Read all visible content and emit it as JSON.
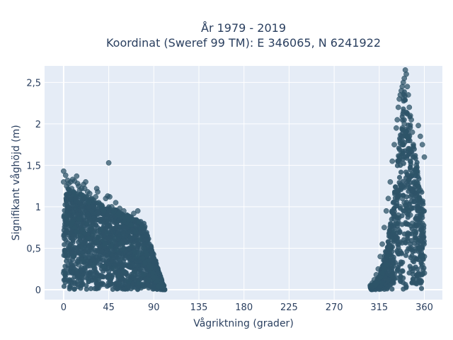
{
  "chart_data": {
    "type": "scatter",
    "title_line1": "År 1979 - 2019",
    "title_line2": "Koordinat (Sweref 99 TM): E 346065, N 6241922",
    "xlabel": "Vågriktning (grader)",
    "ylabel": "Signifikant våghöjd (m)",
    "xlim": [
      -19,
      378
    ],
    "ylim": [
      -0.12,
      2.7
    ],
    "x_ticks": [
      {
        "value": 0,
        "label": "0"
      },
      {
        "value": 45,
        "label": "45"
      },
      {
        "value": 90,
        "label": "90"
      },
      {
        "value": 135,
        "label": "135"
      },
      {
        "value": 180,
        "label": "180"
      },
      {
        "value": 225,
        "label": "225"
      },
      {
        "value": 270,
        "label": "270"
      },
      {
        "value": 315,
        "label": "315"
      },
      {
        "value": 360,
        "label": "360"
      }
    ],
    "y_ticks": [
      {
        "value": 0,
        "label": "0"
      },
      {
        "value": 0.5,
        "label": "0,5"
      },
      {
        "value": 1,
        "label": "1"
      },
      {
        "value": 1.5,
        "label": "1,5"
      },
      {
        "value": 2,
        "label": "2"
      },
      {
        "value": 2.5,
        "label": "2,5"
      }
    ],
    "grid": true,
    "marker_color": "#2e5468",
    "plot_background": "#e5ecf6",
    "series": [
      {
        "x": [
          0,
          0,
          0,
          2,
          3,
          4,
          5,
          6,
          7,
          8,
          9,
          10,
          11,
          12,
          13,
          14,
          15,
          16,
          17,
          18,
          20,
          21,
          22,
          23,
          24,
          25,
          26,
          28,
          30,
          32,
          33,
          34,
          35,
          36,
          38,
          40,
          42,
          44,
          45,
          46,
          48,
          50,
          52,
          54,
          55,
          56,
          58,
          60,
          61,
          62,
          63,
          64,
          65,
          66,
          67,
          68,
          70,
          72,
          74,
          75,
          76,
          78,
          80,
          82,
          83,
          84,
          85,
          86,
          88,
          90,
          92,
          94,
          95,
          96,
          98,
          100,
          1,
          3,
          5,
          7,
          9,
          11,
          13,
          15,
          17,
          19,
          21,
          23,
          25,
          27,
          29,
          31,
          33,
          35,
          37,
          39,
          41,
          43,
          47,
          49,
          51,
          53,
          57,
          59,
          69,
          71,
          73,
          77,
          79,
          81,
          87,
          89,
          91,
          93,
          97,
          99,
          10,
          20,
          30,
          40,
          50,
          60,
          70,
          80,
          90,
          25,
          35,
          45,
          55,
          65,
          75,
          85,
          15,
          95
        ],
        "y": [
          1.43,
          1.3,
          0.2,
          1.38,
          1.25,
          1.32,
          1.28,
          1.2,
          1.3,
          1.22,
          1.33,
          1.18,
          1.31,
          1.15,
          1.37,
          1.28,
          1.25,
          1.2,
          1.15,
          1.22,
          1.27,
          1.22,
          1.3,
          1.12,
          1.18,
          1.05,
          1.16,
          1.1,
          1.08,
          1.12,
          1.22,
          1.18,
          1.05,
          1.0,
          1.02,
          0.95,
          1.1,
          1.13,
          1.53,
          1.12,
          1.0,
          0.94,
          1.05,
          0.9,
          0.92,
          0.98,
          0.88,
          0.95,
          0.82,
          0.86,
          0.9,
          0.8,
          0.84,
          0.88,
          0.78,
          0.85,
          0.92,
          0.7,
          0.95,
          0.82,
          0.6,
          0.75,
          0.5,
          0.45,
          0.42,
          0.35,
          0.3,
          0.28,
          0.22,
          0.18,
          0.15,
          0.12,
          0.1,
          0.08,
          0.06,
          0.05,
          0.9,
          0.85,
          0.8,
          0.78,
          0.82,
          0.75,
          0.7,
          0.85,
          0.65,
          0.72,
          0.68,
          0.8,
          0.62,
          0.74,
          0.66,
          0.7,
          0.58,
          0.64,
          0.72,
          0.6,
          0.55,
          0.68,
          0.52,
          0.58,
          0.62,
          0.48,
          0.56,
          0.5,
          0.54,
          0.46,
          0.4,
          0.44,
          0.38,
          0.32,
          0.26,
          0.2,
          0.12,
          0.1,
          0.07,
          0.05,
          0.4,
          0.35,
          0.3,
          0.28,
          0.25,
          0.22,
          0.2,
          0.18,
          0.15,
          0.1,
          0.12,
          0.14,
          0.16,
          0.1,
          0.08,
          0.12,
          0.3,
          0.04
        ]
      },
      {
        "x": [
          306,
          308,
          310,
          312,
          314,
          316,
          318,
          320,
          322,
          324,
          326,
          328,
          330,
          332,
          333,
          334,
          335,
          336,
          337,
          338,
          339,
          340,
          341,
          342,
          343,
          344,
          345,
          346,
          347,
          348,
          349,
          350,
          351,
          352,
          353,
          354,
          355,
          356,
          357,
          358,
          359,
          360,
          360,
          358,
          356,
          354,
          352,
          350,
          348,
          346,
          344,
          342,
          340,
          338,
          336,
          334,
          332,
          330,
          328,
          326,
          324,
          322,
          320,
          318,
          316,
          314,
          312,
          310,
          336,
          338,
          340,
          342,
          344,
          346,
          348,
          335,
          339,
          341,
          343,
          337,
          345,
          354,
          356,
          358,
          360,
          352,
          350
        ],
        "y": [
          0.05,
          0.08,
          0.12,
          0.18,
          0.25,
          0.4,
          0.55,
          0.75,
          0.95,
          1.1,
          1.3,
          1.55,
          1.75,
          1.95,
          2.05,
          2.2,
          2.3,
          2.35,
          2.4,
          2.45,
          2.5,
          2.55,
          2.65,
          2.6,
          2.45,
          2.35,
          2.2,
          2.1,
          2.05,
          1.9,
          1.75,
          1.6,
          1.45,
          1.3,
          1.4,
          1.25,
          1.1,
          1.2,
          0.95,
          0.8,
          0.7,
          0.4,
          0.2,
          0.3,
          0.4,
          0.5,
          0.6,
          0.7,
          0.8,
          0.9,
          0.95,
          1.0,
          1.05,
          1.1,
          1.0,
          0.9,
          0.8,
          0.7,
          0.6,
          0.5,
          0.4,
          0.3,
          0.25,
          0.2,
          0.15,
          0.1,
          0.08,
          0.05,
          1.8,
          1.95,
          2.0,
          1.85,
          1.7,
          1.55,
          1.4,
          1.6,
          1.75,
          1.9,
          1.85,
          1.65,
          1.7,
          1.98,
          1.85,
          1.75,
          1.6,
          1.5,
          1.3
        ]
      }
    ]
  }
}
